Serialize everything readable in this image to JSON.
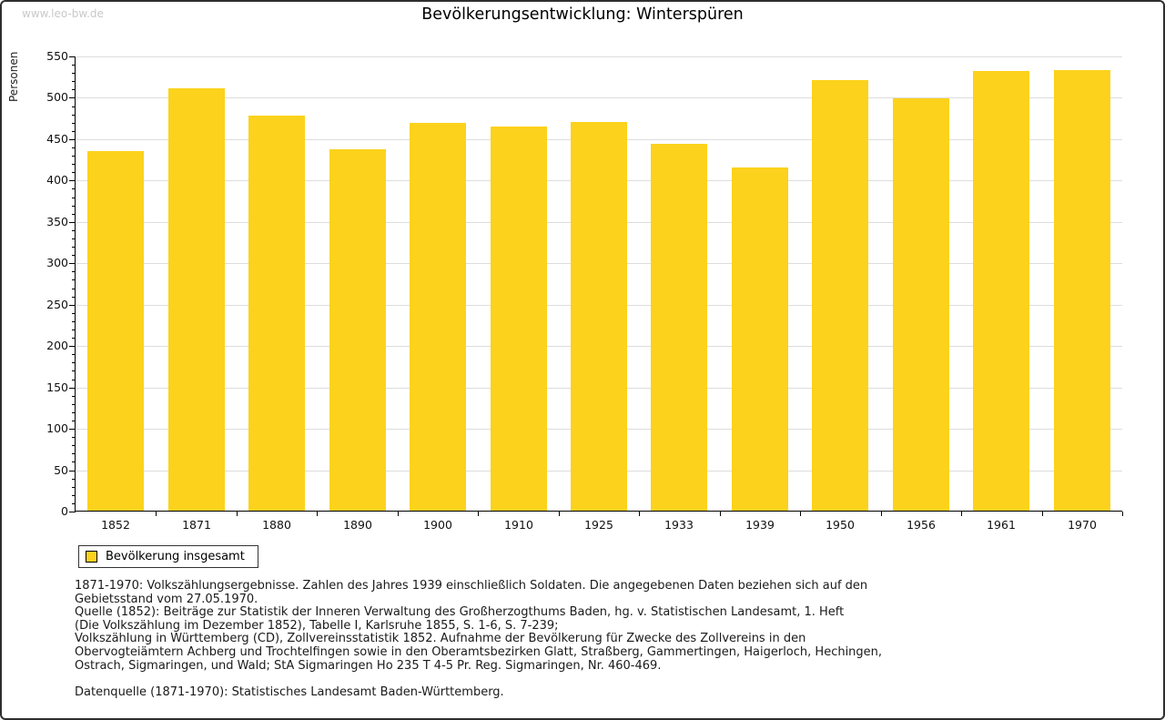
{
  "watermark": "www.leo-bw.de",
  "title": "Bevölkerungsentwicklung: Winterspüren",
  "chart_data": {
    "type": "bar",
    "title": "Bevölkerungsentwicklung: Winterspüren",
    "xlabel": "",
    "ylabel": "Personen",
    "categories": [
      "1852",
      "1871",
      "1880",
      "1890",
      "1900",
      "1910",
      "1925",
      "1933",
      "1939",
      "1950",
      "1956",
      "1961",
      "1970"
    ],
    "series": [
      {
        "name": "Bevölkerung insgesamt",
        "values": [
          435,
          511,
          478,
          437,
          469,
          464,
          470,
          443,
          415,
          520,
          498,
          531,
          533
        ]
      }
    ],
    "ylim": [
      0,
      550
    ],
    "ytick_step": 50,
    "yminor_step": 10,
    "grid": true,
    "bar_color": "#FCD21C",
    "gridline_color": "#dddddd",
    "legend_position": "bottom-left"
  },
  "legend": {
    "label": "Bevölkerung insgesamt",
    "swatch_color": "#FCD21C"
  },
  "footnotes": [
    "1871-1970: Volkszählungsergebnisse. Zahlen des Jahres 1939 einschließlich Soldaten. Die angegebenen Daten beziehen sich auf den",
    "Gebietsstand vom 27.05.1970.",
    "Quelle (1852): Beiträge zur Statistik der Inneren Verwaltung des Großherzogthums Baden, hg. v. Statistischen Landesamt, 1. Heft",
    "(Die Volkszählung im Dezember 1852), Tabelle I, Karlsruhe 1855, S. 1-6, S. 7-239;",
    "Volkszählung in Württemberg (CD), Zollvereinsstatistik 1852. Aufnahme der Bevölkerung für Zwecke des Zollvereins in den",
    "Obervogteiämtern Achberg und Trochtelfingen sowie in den Oberamtsbezirken Glatt, Straßberg, Gammertingen, Haigerloch, Hechingen,",
    "Ostrach, Sigmaringen, und Wald; StA Sigmaringen Ho 235 T 4-5 Pr. Reg. Sigmaringen, Nr. 460-469.",
    "",
    "Datenquelle (1871-1970): Statistisches Landesamt Baden-Württemberg."
  ]
}
